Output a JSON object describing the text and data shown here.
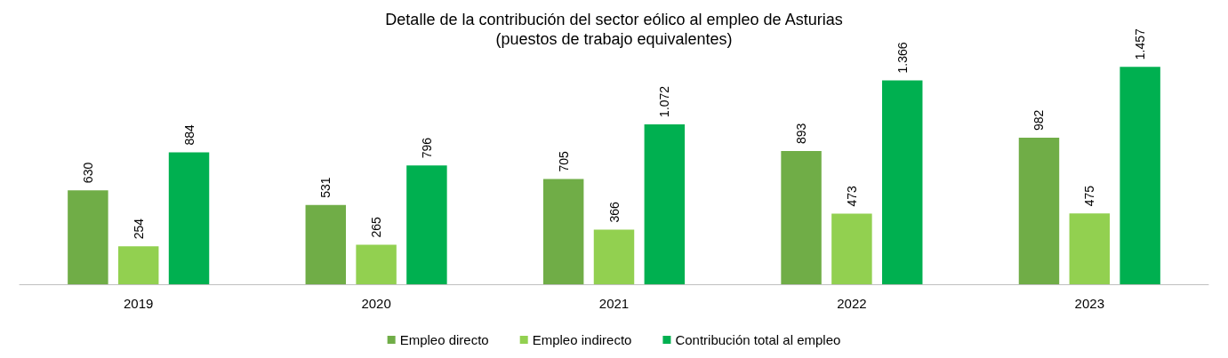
{
  "chart_data": {
    "type": "bar",
    "title": "Detalle de la contribución del sector eólico al empleo de Asturias",
    "subtitle": "(puestos de trabajo equivalentes)",
    "categories": [
      "2019",
      "2020",
      "2021",
      "2022",
      "2023"
    ],
    "series": [
      {
        "name": "Empleo directo",
        "color": "#70ad47",
        "values": [
          630,
          531,
          705,
          893,
          982
        ],
        "value_labels": [
          "630",
          "531",
          "705",
          "893",
          "982"
        ]
      },
      {
        "name": "Empleo indirecto",
        "color": "#92d050",
        "values": [
          254,
          265,
          366,
          473,
          475
        ],
        "value_labels": [
          "254",
          "265",
          "366",
          "473",
          "475"
        ]
      },
      {
        "name": "Contribución total al empleo",
        "color": "#00b050",
        "values": [
          884,
          796,
          1072,
          1366,
          1457
        ],
        "value_labels": [
          "884",
          "796",
          "1.072",
          "1.366",
          "1.457"
        ]
      }
    ],
    "legend": "bottom",
    "grid": false,
    "tick_labels": "x"
  }
}
